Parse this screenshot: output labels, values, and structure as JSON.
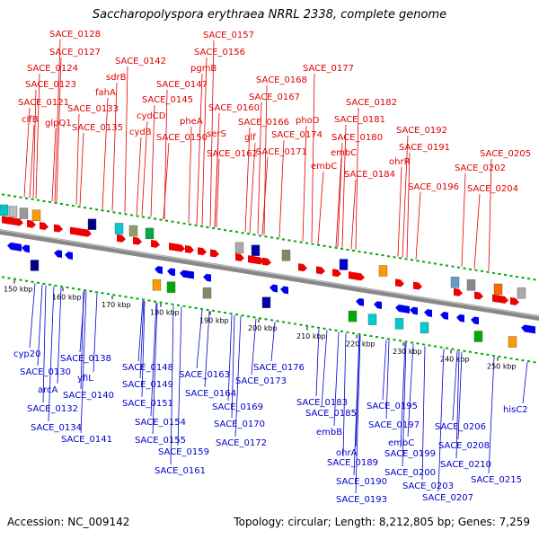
{
  "title": "Saccharopolyspora erythraea NRRL 2338, complete genome",
  "footer": {
    "accession": "Accession: NC_009142",
    "summary": "Topology: circular; Length: 8,212,805 bp; Genes: 7,259"
  },
  "colors": {
    "top_label": "#e00000",
    "bottom_label": "#0000cc",
    "fwd_arrow": "#ee0000",
    "rev_arrow": "#0000ee",
    "tick": "#00aa00",
    "backbone": "#888888"
  },
  "scale_labels": [
    "150 kbp",
    "160 kbp",
    "170 kbp",
    "180 kbp",
    "190 kbp",
    "200 kbp",
    "210 kbp",
    "220 kbp",
    "230 kbp",
    "240 kbp",
    "250 kbp"
  ],
  "top_genes": [
    "SACE_0128",
    "SACE_0127",
    "SACE_0124",
    "SACE_0123",
    "SACE_0121",
    "clfB",
    "glpQ1",
    "SACE_0133",
    "fahA",
    "sdrB",
    "SACE_0135",
    "SACE_0142",
    "cydCD",
    "cydB",
    "SACE_0145",
    "SACE_0147",
    "pgmB",
    "SACE_0156",
    "SACE_0157",
    "pheA",
    "SACE_0150",
    "SACE_0160",
    "serS",
    "SACE_0162",
    "glf",
    "SACE_0166",
    "SACE_0167",
    "SACE_0168",
    "SACE_0171",
    "SACE_0174",
    "phoD",
    "SACE_0177",
    "embC",
    "SACE_0180",
    "SACE_0181",
    "SACE_0182",
    "embC",
    "SACE_0184",
    "ohrR",
    "SACE_0191",
    "SACE_0192",
    "SACE_0196",
    "SACE_0202",
    "SACE_0205",
    "SACE_0204"
  ],
  "bottom_genes": [
    "cyp20",
    "SACE_0130",
    "arcA",
    "SACE_0132",
    "SACE_0134",
    "SACE_0138",
    "yfiL",
    "SACE_0140",
    "SACE_0141",
    "SACE_0148",
    "SACE_0149",
    "SACE_0151",
    "SACE_0154",
    "SACE_0155",
    "SACE_0159",
    "SACE_0161",
    "SACE_0163",
    "SACE_0164",
    "SACE_0169",
    "SACE_0170",
    "SACE_0172",
    "SACE_0173",
    "SACE_0176",
    "SACE_0183",
    "SACE_0185",
    "embB",
    "ohrA",
    "SACE_0189",
    "SACE_0190",
    "SACE_0193",
    "SACE_0195",
    "SACE_0197",
    "embC",
    "SACE_0199",
    "SACE_0200",
    "SACE_0203",
    "SACE_0207",
    "SACE_0206",
    "SACE_0208",
    "SACE_0210",
    "SACE_0215",
    "hisC2"
  ]
}
